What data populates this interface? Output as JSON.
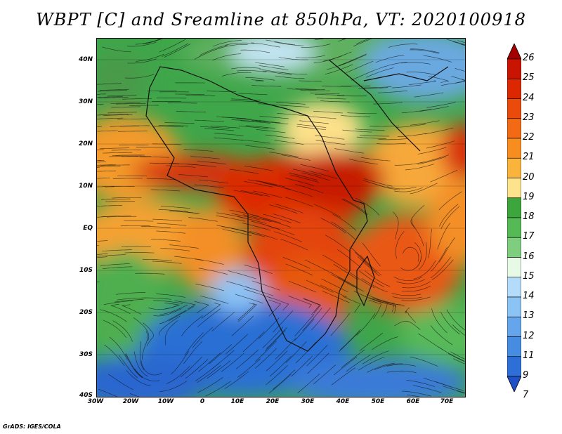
{
  "title": "WBPT [C] and Sreamline at 850hPa, VT: 2020100918",
  "lat_labels": [
    "40N",
    "30N",
    "20N",
    "10N",
    "EQ",
    "10S",
    "20S",
    "30S",
    "40S"
  ],
  "lon_labels": [
    "30W",
    "20W",
    "10W",
    "0",
    "10E",
    "20E",
    "30E",
    "40E",
    "50E",
    "60E",
    "70E"
  ],
  "colorbar": {
    "levels": [
      "26",
      "25",
      "24",
      "23",
      "22",
      "21",
      "20",
      "19",
      "18",
      "17",
      "16",
      "15",
      "14",
      "13",
      "12",
      "11",
      "9",
      "7"
    ],
    "colors": [
      "#a40000",
      "#c81400",
      "#dc2800",
      "#eb4b0a",
      "#f26a14",
      "#f78d1e",
      "#fab43c",
      "#fde38c",
      "#3ca53c",
      "#55b955",
      "#7fcd7f",
      "#e6fae6",
      "#b4dcfa",
      "#8cc3f5",
      "#64a5eb",
      "#468ce1",
      "#2d6ed7",
      "#1e50c8"
    ]
  },
  "credit": "GrADS: IGES/COLA"
}
